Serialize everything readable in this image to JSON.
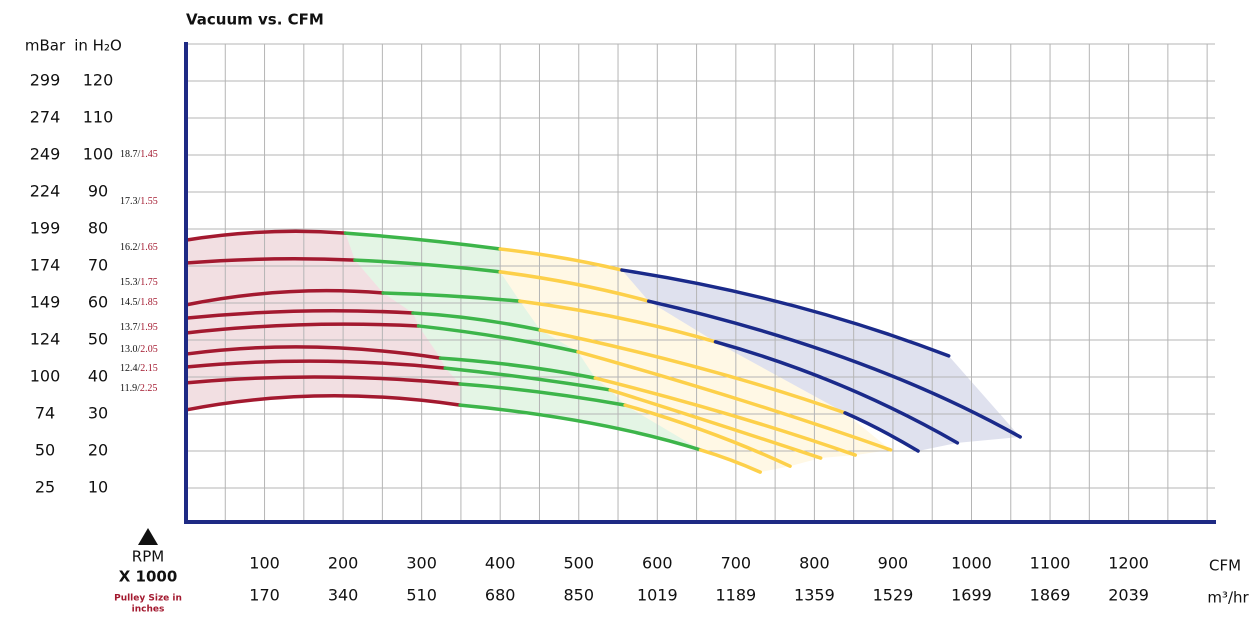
{
  "chart_data": {
    "type": "performance-curves",
    "title": "Vacuum vs. CFM",
    "y_unit_left": "mBar",
    "y_unit": "in H₂O",
    "x_unit": "CFM",
    "x_unit_second": "m³/hr",
    "rpm_title": "RPM",
    "rpm_scale": "X 1000",
    "pulley_note": [
      "Pulley Size in",
      "inches"
    ],
    "xlim": [
      0,
      1310
    ],
    "ylim": [
      0,
      130
    ],
    "xticks": [
      100,
      200,
      300,
      400,
      500,
      600,
      700,
      800,
      900,
      1000,
      1100,
      1200
    ],
    "m3hr_labels": [
      170,
      340,
      510,
      680,
      850,
      1019,
      1189,
      1359,
      1529,
      1699,
      1869,
      2039
    ],
    "yticks": [
      10,
      20,
      30,
      40,
      50,
      60,
      70,
      80,
      90,
      100,
      110,
      120
    ],
    "mbar_labels": [
      25,
      50,
      74,
      100,
      124,
      149,
      174,
      199,
      224,
      249,
      274,
      299
    ],
    "grid": true,
    "zone_colors": [
      "#a3192f",
      "#3db54a",
      "#fdd04a",
      "#1a2a8a"
    ],
    "series": [
      {
        "rpm_label": "18.7/",
        "pulley": 1.45,
        "segments": [
          {
            "color": "#a3192f",
            "x": [
              0,
              101,
              203
            ],
            "y": [
              77.0,
              79.2,
              78.9
            ]
          },
          {
            "color": "#3db54a",
            "x": [
              203,
              304,
              400
            ],
            "y": [
              78.9,
              77.0,
              74.6
            ]
          },
          {
            "color": "#fdd04a",
            "x": [
              400,
              479,
              555
            ],
            "y": [
              74.6,
              72.2,
              68.9
            ]
          },
          {
            "color": "#1a2a8a",
            "x": [
              555,
              769,
              971
            ],
            "y": [
              68.9,
              59.5,
              45.7
            ]
          }
        ]
      },
      {
        "rpm_label": "17.3/",
        "pulley": 1.55,
        "segments": [
          {
            "color": "#a3192f",
            "x": [
              0,
              107,
              215
            ],
            "y": [
              70.8,
              71.9,
              71.6
            ]
          },
          {
            "color": "#3db54a",
            "x": [
              215,
              311,
              400
            ],
            "y": [
              71.6,
              70.3,
              68.4
            ]
          },
          {
            "color": "#fdd04a",
            "x": [
              400,
              496,
              589
            ],
            "y": [
              68.4,
              65.1,
              60.5
            ]
          },
          {
            "color": "#1a2a8a",
            "x": [
              589,
              846,
              1062
            ],
            "y": [
              60.5,
              44.6,
              23.8
            ]
          }
        ]
      },
      {
        "rpm_label": "16.2/",
        "pulley": 1.65,
        "segments": [
          {
            "color": "#a3192f",
            "x": [
              0,
              126,
              251
            ],
            "y": [
              59.5,
              63.0,
              62.7
            ]
          },
          {
            "color": "#3db54a",
            "x": [
              251,
              336,
              425
            ],
            "y": [
              62.7,
              61.9,
              60.5
            ]
          },
          {
            "color": "#fdd04a",
            "x": [
              425,
              553,
              674
            ],
            "y": [
              60.5,
              55.9,
              49.5
            ]
          },
          {
            "color": "#1a2a8a",
            "x": [
              674,
              833,
              982
            ],
            "y": [
              49.5,
              37.8,
              22.2
            ]
          }
        ]
      },
      {
        "rpm_label": "15.3/",
        "pulley": 1.75,
        "segments": [
          {
            "color": "#a3192f",
            "x": [
              0,
              145,
              289
            ],
            "y": [
              55.9,
              57.8,
              57.3
            ]
          },
          {
            "color": "#3db54a",
            "x": [
              289,
              368,
              451
            ],
            "y": [
              57.3,
              55.7,
              52.7
            ]
          },
          {
            "color": "#fdd04a",
            "x": [
              451,
              655,
              839
            ],
            "y": [
              52.7,
              42.4,
              30.3
            ]
          },
          {
            "color": "#1a2a8a",
            "x": [
              839,
              884,
              932
            ],
            "y": [
              30.3,
              25.7,
              20.0
            ]
          }
        ]
      },
      {
        "rpm_label": "14.5/",
        "pulley": 1.85,
        "segments": [
          {
            "color": "#a3192f",
            "x": [
              0,
              145,
              296
            ],
            "y": [
              51.9,
              54.1,
              53.8
            ]
          },
          {
            "color": "#3db54a",
            "x": [
              296,
              400,
              499
            ],
            "y": [
              53.8,
              50.8,
              46.8
            ]
          },
          {
            "color": "#fdd04a",
            "x": [
              499,
              706,
              897
            ],
            "y": [
              46.8,
              33.8,
              20.3
            ]
          }
        ]
      },
      {
        "rpm_label": "13.7/",
        "pulley": 1.95,
        "segments": [
          {
            "color": "#a3192f",
            "x": [
              0,
              158,
              324
            ],
            "y": [
              46.2,
              48.1,
              45.1
            ]
          },
          {
            "color": "#3db54a",
            "x": [
              324,
              425,
              521
            ],
            "y": [
              45.1,
              43.0,
              39.7
            ]
          },
          {
            "color": "#fdd04a",
            "x": [
              521,
              694,
              852
            ],
            "y": [
              39.7,
              29.7,
              18.9
            ]
          }
        ]
      },
      {
        "rpm_label": "13.0/",
        "pulley": 2.05,
        "segments": [
          {
            "color": "#a3192f",
            "x": [
              0,
              164,
              330
            ],
            "y": [
              42.7,
              44.3,
              42.4
            ]
          },
          {
            "color": "#3db54a",
            "x": [
              330,
              438,
              540
            ],
            "y": [
              42.4,
              39.7,
              36.5
            ]
          },
          {
            "color": "#fdd04a",
            "x": [
              540,
              680,
              808
            ],
            "y": [
              36.5,
              27.0,
              18.1
            ]
          }
        ]
      },
      {
        "rpm_label": "12.4/",
        "pulley": 2.15,
        "segments": [
          {
            "color": "#a3192f",
            "x": [
              0,
              171,
              349
            ],
            "y": [
              38.4,
              40.0,
              38.1
            ]
          },
          {
            "color": "#3db54a",
            "x": [
              349,
              451,
              559
            ],
            "y": [
              38.1,
              35.9,
              32.4
            ]
          },
          {
            "color": "#fdd04a",
            "x": [
              559,
              667,
              769
            ],
            "y": [
              32.4,
              24.9,
              15.9
            ]
          }
        ]
      },
      {
        "rpm_label": "11.9/",
        "pulley": 2.25,
        "segments": [
          {
            "color": "#a3192f",
            "x": [
              0,
              171,
              349
            ],
            "y": [
              31.1,
              34.9,
              32.4
            ]
          },
          {
            "color": "#3db54a",
            "x": [
              349,
              514,
              655
            ],
            "y": [
              32.4,
              27.6,
              20.3
            ]
          },
          {
            "color": "#fdd04a",
            "x": [
              655,
              693,
              731
            ],
            "y": [
              20.3,
              17.6,
              14.3
            ]
          }
        ]
      }
    ]
  }
}
